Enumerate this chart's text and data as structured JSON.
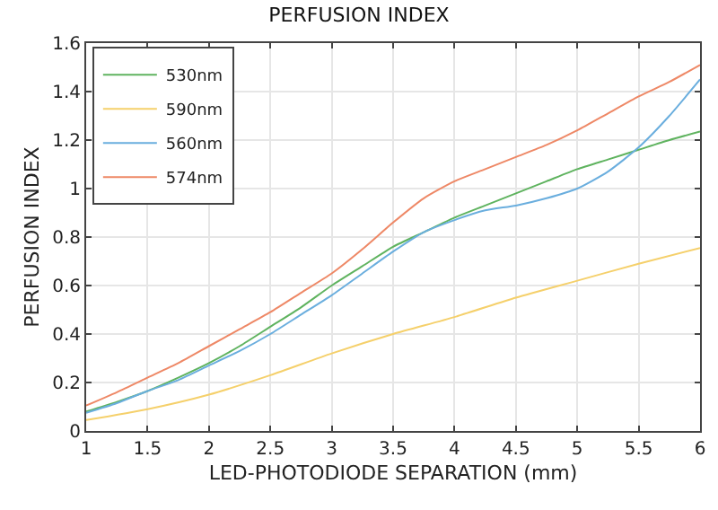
{
  "chart_data": {
    "type": "line",
    "title": "PERFUSION INDEX",
    "xlabel": "LED-PHOTODIODE SEPARATION (mm)",
    "ylabel": "PERFUSION INDEX",
    "x": [
      1,
      1.25,
      1.5,
      1.75,
      2,
      2.25,
      2.5,
      2.75,
      3,
      3.25,
      3.5,
      3.75,
      4,
      4.25,
      4.5,
      4.75,
      5,
      5.25,
      5.5,
      5.75,
      6
    ],
    "series": [
      {
        "name": "530nm",
        "color": "#5fb35f",
        "values": [
          0.08,
          0.12,
          0.165,
          0.22,
          0.28,
          0.35,
          0.43,
          0.51,
          0.6,
          0.68,
          0.76,
          0.82,
          0.88,
          0.93,
          0.98,
          1.03,
          1.08,
          1.12,
          1.16,
          1.2,
          1.235
        ]
      },
      {
        "name": "590nm",
        "color": "#f5d06b",
        "x": [
          1,
          1.5,
          2,
          2.5,
          3,
          3.5,
          4,
          4.5,
          5,
          5.5,
          6
        ],
        "values": [
          0.045,
          0.09,
          0.15,
          0.23,
          0.32,
          0.4,
          0.47,
          0.55,
          0.62,
          0.69,
          0.755
        ]
      },
      {
        "name": "560nm",
        "color": "#6aaede",
        "values": [
          0.075,
          0.115,
          0.165,
          0.21,
          0.27,
          0.33,
          0.4,
          0.48,
          0.56,
          0.65,
          0.74,
          0.82,
          0.87,
          0.91,
          0.93,
          0.96,
          1.0,
          1.07,
          1.17,
          1.3,
          1.45
        ]
      },
      {
        "name": "574nm",
        "color": "#ee8866",
        "values": [
          0.105,
          0.16,
          0.22,
          0.28,
          0.35,
          0.42,
          0.49,
          0.57,
          0.65,
          0.75,
          0.86,
          0.96,
          1.03,
          1.08,
          1.13,
          1.18,
          1.24,
          1.31,
          1.38,
          1.44,
          1.51
        ]
      }
    ],
    "xlim": [
      1,
      6
    ],
    "xticks": [
      1,
      1.5,
      2,
      2.5,
      3,
      3.5,
      4,
      4.5,
      5,
      5.5,
      6
    ],
    "ylim": [
      0,
      1.6
    ],
    "yticks": [
      0,
      0.2,
      0.4,
      0.6,
      0.8,
      1,
      1.2,
      1.4,
      1.6
    ],
    "grid": true,
    "legend": "top left",
    "marker": "none",
    "line_style": "solid"
  }
}
